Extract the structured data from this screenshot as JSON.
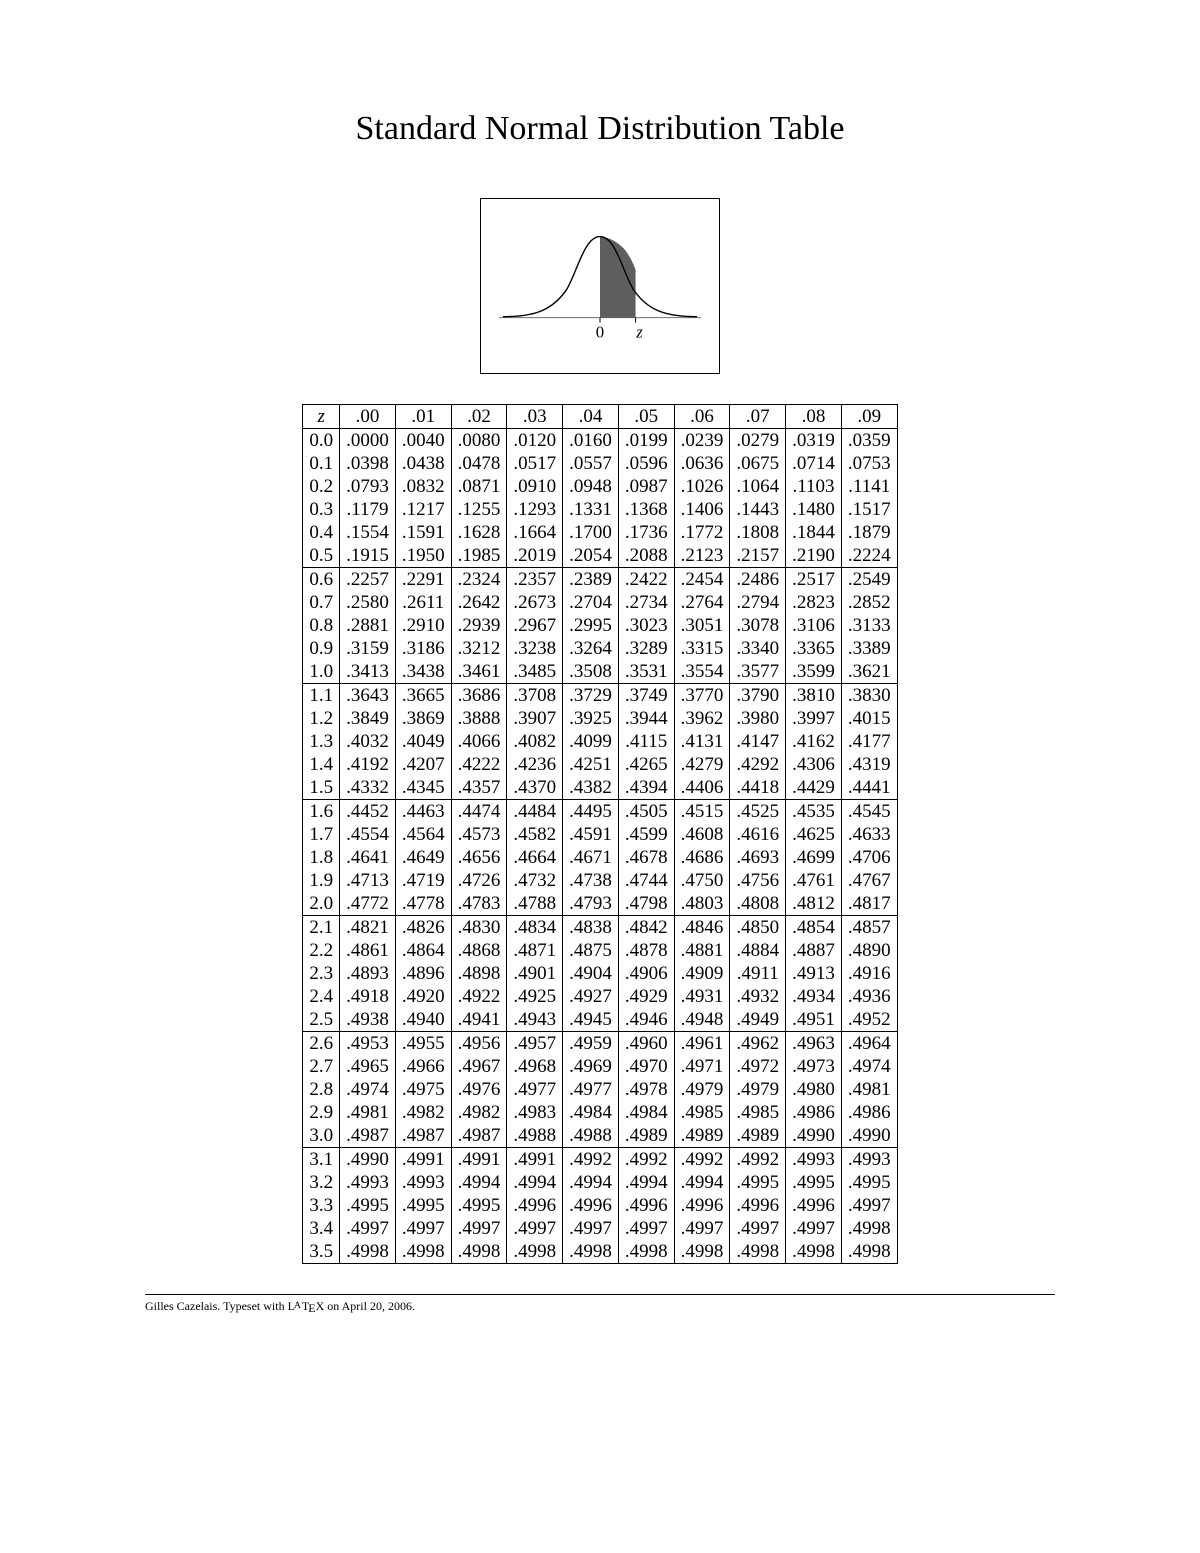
{
  "title": "Standard Normal Distribution Table",
  "diagram": {
    "axis_label_zero": "0",
    "axis_label_z": "z",
    "curve_color": "#000000",
    "fill_color": "#5e5e5e",
    "axis_color": "#6f6f6f",
    "background": "#ffffff"
  },
  "table": {
    "corner": "z",
    "col_headers": [
      ".00",
      ".01",
      ".02",
      ".03",
      ".04",
      ".05",
      ".06",
      ".07",
      ".08",
      ".09"
    ],
    "blocks": [
      {
        "rows": [
          {
            "z": "0.0",
            "v": [
              ".0000",
              ".0040",
              ".0080",
              ".0120",
              ".0160",
              ".0199",
              ".0239",
              ".0279",
              ".0319",
              ".0359"
            ]
          },
          {
            "z": "0.1",
            "v": [
              ".0398",
              ".0438",
              ".0478",
              ".0517",
              ".0557",
              ".0596",
              ".0636",
              ".0675",
              ".0714",
              ".0753"
            ]
          },
          {
            "z": "0.2",
            "v": [
              ".0793",
              ".0832",
              ".0871",
              ".0910",
              ".0948",
              ".0987",
              ".1026",
              ".1064",
              ".1103",
              ".1141"
            ]
          },
          {
            "z": "0.3",
            "v": [
              ".1179",
              ".1217",
              ".1255",
              ".1293",
              ".1331",
              ".1368",
              ".1406",
              ".1443",
              ".1480",
              ".1517"
            ]
          },
          {
            "z": "0.4",
            "v": [
              ".1554",
              ".1591",
              ".1628",
              ".1664",
              ".1700",
              ".1736",
              ".1772",
              ".1808",
              ".1844",
              ".1879"
            ]
          },
          {
            "z": "0.5",
            "v": [
              ".1915",
              ".1950",
              ".1985",
              ".2019",
              ".2054",
              ".2088",
              ".2123",
              ".2157",
              ".2190",
              ".2224"
            ]
          }
        ]
      },
      {
        "rows": [
          {
            "z": "0.6",
            "v": [
              ".2257",
              ".2291",
              ".2324",
              ".2357",
              ".2389",
              ".2422",
              ".2454",
              ".2486",
              ".2517",
              ".2549"
            ]
          },
          {
            "z": "0.7",
            "v": [
              ".2580",
              ".2611",
              ".2642",
              ".2673",
              ".2704",
              ".2734",
              ".2764",
              ".2794",
              ".2823",
              ".2852"
            ]
          },
          {
            "z": "0.8",
            "v": [
              ".2881",
              ".2910",
              ".2939",
              ".2967",
              ".2995",
              ".3023",
              ".3051",
              ".3078",
              ".3106",
              ".3133"
            ]
          },
          {
            "z": "0.9",
            "v": [
              ".3159",
              ".3186",
              ".3212",
              ".3238",
              ".3264",
              ".3289",
              ".3315",
              ".3340",
              ".3365",
              ".3389"
            ]
          },
          {
            "z": "1.0",
            "v": [
              ".3413",
              ".3438",
              ".3461",
              ".3485",
              ".3508",
              ".3531",
              ".3554",
              ".3577",
              ".3599",
              ".3621"
            ]
          }
        ]
      },
      {
        "rows": [
          {
            "z": "1.1",
            "v": [
              ".3643",
              ".3665",
              ".3686",
              ".3708",
              ".3729",
              ".3749",
              ".3770",
              ".3790",
              ".3810",
              ".3830"
            ]
          },
          {
            "z": "1.2",
            "v": [
              ".3849",
              ".3869",
              ".3888",
              ".3907",
              ".3925",
              ".3944",
              ".3962",
              ".3980",
              ".3997",
              ".4015"
            ]
          },
          {
            "z": "1.3",
            "v": [
              ".4032",
              ".4049",
              ".4066",
              ".4082",
              ".4099",
              ".4115",
              ".4131",
              ".4147",
              ".4162",
              ".4177"
            ]
          },
          {
            "z": "1.4",
            "v": [
              ".4192",
              ".4207",
              ".4222",
              ".4236",
              ".4251",
              ".4265",
              ".4279",
              ".4292",
              ".4306",
              ".4319"
            ]
          },
          {
            "z": "1.5",
            "v": [
              ".4332",
              ".4345",
              ".4357",
              ".4370",
              ".4382",
              ".4394",
              ".4406",
              ".4418",
              ".4429",
              ".4441"
            ]
          }
        ]
      },
      {
        "rows": [
          {
            "z": "1.6",
            "v": [
              ".4452",
              ".4463",
              ".4474",
              ".4484",
              ".4495",
              ".4505",
              ".4515",
              ".4525",
              ".4535",
              ".4545"
            ]
          },
          {
            "z": "1.7",
            "v": [
              ".4554",
              ".4564",
              ".4573",
              ".4582",
              ".4591",
              ".4599",
              ".4608",
              ".4616",
              ".4625",
              ".4633"
            ]
          },
          {
            "z": "1.8",
            "v": [
              ".4641",
              ".4649",
              ".4656",
              ".4664",
              ".4671",
              ".4678",
              ".4686",
              ".4693",
              ".4699",
              ".4706"
            ]
          },
          {
            "z": "1.9",
            "v": [
              ".4713",
              ".4719",
              ".4726",
              ".4732",
              ".4738",
              ".4744",
              ".4750",
              ".4756",
              ".4761",
              ".4767"
            ]
          },
          {
            "z": "2.0",
            "v": [
              ".4772",
              ".4778",
              ".4783",
              ".4788",
              ".4793",
              ".4798",
              ".4803",
              ".4808",
              ".4812",
              ".4817"
            ]
          }
        ]
      },
      {
        "rows": [
          {
            "z": "2.1",
            "v": [
              ".4821",
              ".4826",
              ".4830",
              ".4834",
              ".4838",
              ".4842",
              ".4846",
              ".4850",
              ".4854",
              ".4857"
            ]
          },
          {
            "z": "2.2",
            "v": [
              ".4861",
              ".4864",
              ".4868",
              ".4871",
              ".4875",
              ".4878",
              ".4881",
              ".4884",
              ".4887",
              ".4890"
            ]
          },
          {
            "z": "2.3",
            "v": [
              ".4893",
              ".4896",
              ".4898",
              ".4901",
              ".4904",
              ".4906",
              ".4909",
              ".4911",
              ".4913",
              ".4916"
            ]
          },
          {
            "z": "2.4",
            "v": [
              ".4918",
              ".4920",
              ".4922",
              ".4925",
              ".4927",
              ".4929",
              ".4931",
              ".4932",
              ".4934",
              ".4936"
            ]
          },
          {
            "z": "2.5",
            "v": [
              ".4938",
              ".4940",
              ".4941",
              ".4943",
              ".4945",
              ".4946",
              ".4948",
              ".4949",
              ".4951",
              ".4952"
            ]
          }
        ]
      },
      {
        "rows": [
          {
            "z": "2.6",
            "v": [
              ".4953",
              ".4955",
              ".4956",
              ".4957",
              ".4959",
              ".4960",
              ".4961",
              ".4962",
              ".4963",
              ".4964"
            ]
          },
          {
            "z": "2.7",
            "v": [
              ".4965",
              ".4966",
              ".4967",
              ".4968",
              ".4969",
              ".4970",
              ".4971",
              ".4972",
              ".4973",
              ".4974"
            ]
          },
          {
            "z": "2.8",
            "v": [
              ".4974",
              ".4975",
              ".4976",
              ".4977",
              ".4977",
              ".4978",
              ".4979",
              ".4979",
              ".4980",
              ".4981"
            ]
          },
          {
            "z": "2.9",
            "v": [
              ".4981",
              ".4982",
              ".4982",
              ".4983",
              ".4984",
              ".4984",
              ".4985",
              ".4985",
              ".4986",
              ".4986"
            ]
          },
          {
            "z": "3.0",
            "v": [
              ".4987",
              ".4987",
              ".4987",
              ".4988",
              ".4988",
              ".4989",
              ".4989",
              ".4989",
              ".4990",
              ".4990"
            ]
          }
        ]
      },
      {
        "rows": [
          {
            "z": "3.1",
            "v": [
              ".4990",
              ".4991",
              ".4991",
              ".4991",
              ".4992",
              ".4992",
              ".4992",
              ".4992",
              ".4993",
              ".4993"
            ]
          },
          {
            "z": "3.2",
            "v": [
              ".4993",
              ".4993",
              ".4994",
              ".4994",
              ".4994",
              ".4994",
              ".4994",
              ".4995",
              ".4995",
              ".4995"
            ]
          },
          {
            "z": "3.3",
            "v": [
              ".4995",
              ".4995",
              ".4995",
              ".4996",
              ".4996",
              ".4996",
              ".4996",
              ".4996",
              ".4996",
              ".4997"
            ]
          },
          {
            "z": "3.4",
            "v": [
              ".4997",
              ".4997",
              ".4997",
              ".4997",
              ".4997",
              ".4997",
              ".4997",
              ".4997",
              ".4997",
              ".4998"
            ]
          },
          {
            "z": "3.5",
            "v": [
              ".4998",
              ".4998",
              ".4998",
              ".4998",
              ".4998",
              ".4998",
              ".4998",
              ".4998",
              ".4998",
              ".4998"
            ]
          }
        ]
      }
    ]
  },
  "footer": {
    "author": "Gilles Cazelais.",
    "typeset_prefix": "Typeset with ",
    "typeset_tool": "LATEX",
    "typeset_suffix": " on April 20, 2006."
  }
}
